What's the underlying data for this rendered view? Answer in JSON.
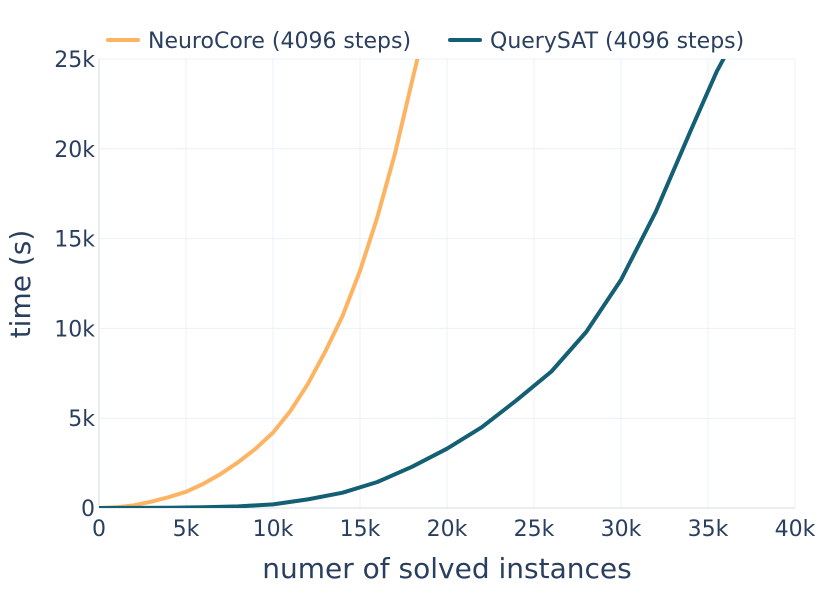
{
  "chart_data": {
    "type": "line",
    "xlabel": "numer of solved instances",
    "ylabel": "time (s)",
    "xlim": [
      0,
      40000
    ],
    "ylim": [
      0,
      25000
    ],
    "grid": true,
    "legend_placement": "top",
    "x_ticks": [
      {
        "value": 0,
        "label": "0"
      },
      {
        "value": 5000,
        "label": "5k"
      },
      {
        "value": 10000,
        "label": "10k"
      },
      {
        "value": 15000,
        "label": "15k"
      },
      {
        "value": 20000,
        "label": "20k"
      },
      {
        "value": 25000,
        "label": "25k"
      },
      {
        "value": 30000,
        "label": "30k"
      },
      {
        "value": 35000,
        "label": "35k"
      },
      {
        "value": 40000,
        "label": "40k"
      }
    ],
    "y_ticks": [
      {
        "value": 0,
        "label": "0"
      },
      {
        "value": 5000,
        "label": "5k"
      },
      {
        "value": 10000,
        "label": "10k"
      },
      {
        "value": 15000,
        "label": "15k"
      },
      {
        "value": 20000,
        "label": "20k"
      },
      {
        "value": 25000,
        "label": "25k"
      }
    ],
    "series": [
      {
        "name": "NeuroCore (4096 steps)",
        "color": "#fdb462",
        "x": [
          0,
          1000,
          2000,
          3000,
          4000,
          5000,
          6000,
          7000,
          8000,
          9000,
          10000,
          11000,
          12000,
          13000,
          14000,
          15000,
          16000,
          17000,
          18000,
          18300
        ],
        "y": [
          0,
          40,
          150,
          350,
          600,
          900,
          1350,
          1900,
          2550,
          3300,
          4200,
          5400,
          6900,
          8700,
          10700,
          13200,
          16200,
          19700,
          23800,
          25000
        ]
      },
      {
        "name": "QuerySAT (4096 steps)",
        "color": "#135f74",
        "x": [
          0,
          2000,
          4000,
          6000,
          8000,
          10000,
          12000,
          14000,
          16000,
          18000,
          20000,
          22000,
          24000,
          26000,
          28000,
          30000,
          32000,
          34000,
          35500,
          36000
        ],
        "y": [
          0,
          5,
          15,
          40,
          90,
          200,
          480,
          850,
          1450,
          2300,
          3300,
          4500,
          6000,
          7600,
          9800,
          12700,
          16500,
          21000,
          24300,
          25200
        ]
      }
    ]
  }
}
